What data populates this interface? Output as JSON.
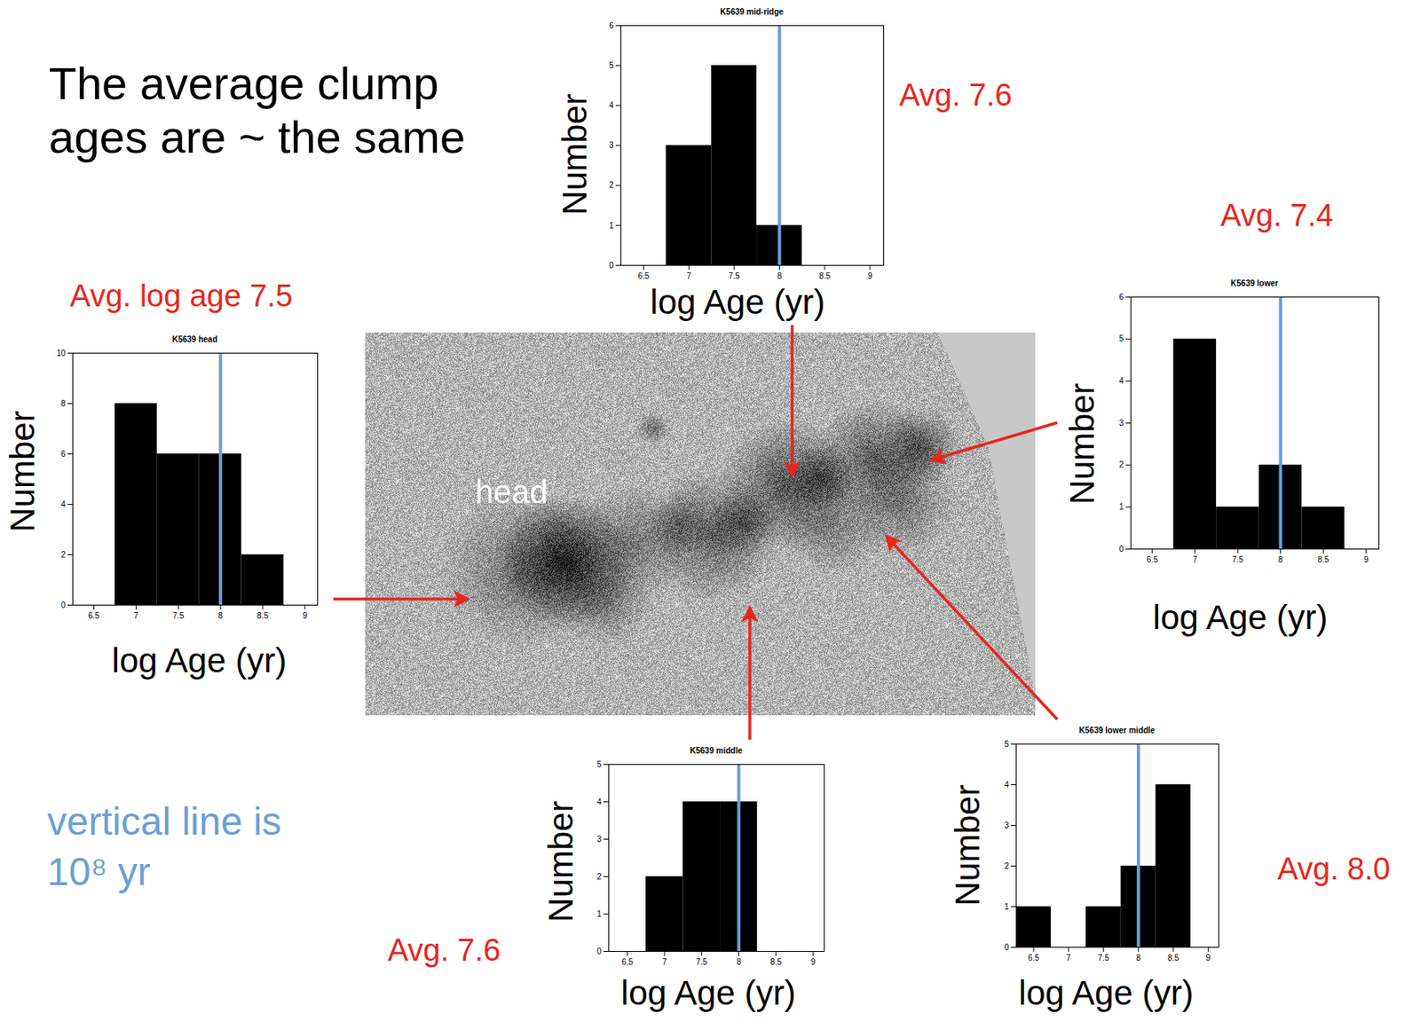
{
  "title": "The average clump ages are ~ the same",
  "note": "vertical line is 10⁸ yr",
  "image_label": "head",
  "chart_data": [
    {
      "type": "histogram",
      "title": "K5639 head",
      "xlabel": "log Age (yr)",
      "ylabel": "Number",
      "annotation": "Avg. log age 7.5",
      "bins": [
        6.75,
        7.25,
        7.75,
        8.25,
        8.75
      ],
      "counts": [
        8,
        6,
        6,
        2
      ],
      "color": "#000000",
      "reference_line": 8,
      "xlim": [
        6.25,
        9.15
      ],
      "xticks": [
        6.5,
        7,
        7.5,
        8,
        8.5,
        9
      ],
      "ylim": [
        0,
        10
      ],
      "yticks": [
        0,
        2,
        4,
        6,
        8,
        10
      ]
    },
    {
      "type": "histogram",
      "title": "K5639 mid-ridge",
      "xlabel": "log Age (yr)",
      "ylabel": "Number",
      "annotation": "Avg. 7.6",
      "bins": [
        6.75,
        7.25,
        7.75,
        8.25
      ],
      "counts": [
        3,
        5,
        1
      ],
      "color": "#000000",
      "reference_line": 8,
      "xlim": [
        6.25,
        9.15
      ],
      "xticks": [
        6.5,
        7,
        7.5,
        8,
        8.5,
        9
      ],
      "ylim": [
        0,
        6
      ],
      "yticks": [
        0,
        1,
        2,
        3,
        4,
        5,
        6
      ]
    },
    {
      "type": "histogram",
      "title": "K5639 lower",
      "xlabel": "log Age (yr)",
      "ylabel": "Number",
      "annotation": "Avg. 7.4",
      "bins": [
        6.75,
        7.25,
        7.75,
        8.25,
        8.75
      ],
      "counts": [
        5,
        1,
        2,
        1
      ],
      "color": "#000000",
      "reference_line": 8,
      "xlim": [
        6.25,
        9.15
      ],
      "xticks": [
        6.5,
        7,
        7.5,
        8,
        8.5,
        9
      ],
      "ylim": [
        0,
        6
      ],
      "yticks": [
        0,
        1,
        2,
        3,
        4,
        5,
        6
      ]
    },
    {
      "type": "histogram",
      "title": "K5639 middle",
      "xlabel": "log Age (yr)",
      "ylabel": "Number",
      "annotation": "Avg. 7.6",
      "bins": [
        6.75,
        7.25,
        7.75,
        8.25
      ],
      "counts": [
        2,
        4,
        4
      ],
      "color": "#000000",
      "reference_line": 8,
      "xlim": [
        6.25,
        9.15
      ],
      "xticks": [
        6.5,
        7,
        7.5,
        8,
        8.5,
        9
      ],
      "ylim": [
        0,
        5
      ],
      "yticks": [
        0,
        1,
        2,
        3,
        4,
        5
      ]
    },
    {
      "type": "histogram",
      "title": "K5639 lower middle",
      "xlabel": "log Age (yr)",
      "ylabel": "Number",
      "annotation": "Avg. 8.0",
      "bins": [
        6.25,
        6.75,
        7.25,
        7.75,
        8.25,
        8.75
      ],
      "counts": [
        1,
        0,
        1,
        2,
        4
      ],
      "color": "#000000",
      "reference_line": 8,
      "xlim": [
        6.25,
        9.15
      ],
      "xticks": [
        6.5,
        7,
        7.5,
        8,
        8.5,
        9
      ],
      "ylim": [
        0,
        5
      ],
      "yticks": [
        0,
        1,
        2,
        3,
        4,
        5
      ]
    }
  ]
}
